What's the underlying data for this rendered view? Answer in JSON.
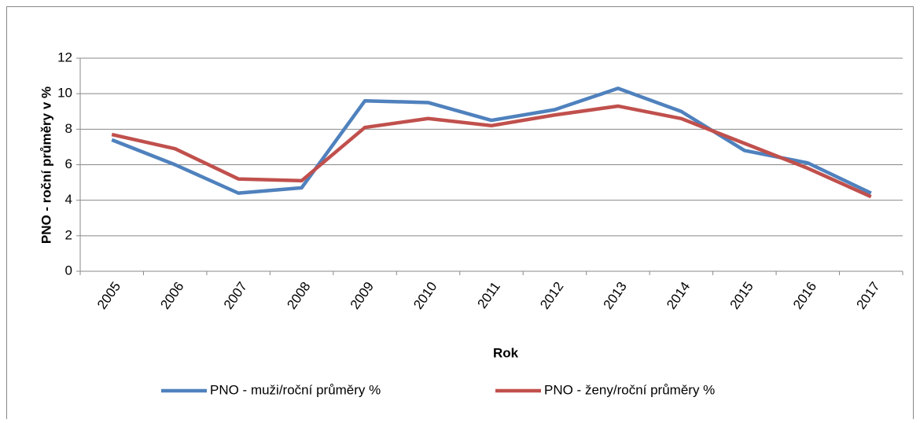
{
  "chart_data": {
    "type": "line",
    "x_label": "Rok",
    "y_label": "PNO  - roční průměry v %",
    "categories": [
      "2005",
      "2006",
      "2007",
      "2008",
      "2009",
      "2010",
      "2011",
      "2012",
      "2013",
      "2014",
      "2015",
      "2016",
      "2017"
    ],
    "series": [
      {
        "name": "PNO - muži/roční průměry %",
        "color": "#4f81bd",
        "values": [
          7.4,
          6.0,
          4.4,
          4.7,
          9.6,
          9.5,
          8.5,
          9.1,
          10.3,
          9.0,
          6.8,
          6.1,
          4.4
        ]
      },
      {
        "name": "PNO - ženy/roční průměry %",
        "color": "#c0504d",
        "values": [
          7.7,
          6.9,
          5.2,
          5.1,
          8.1,
          8.6,
          8.2,
          8.8,
          9.3,
          8.6,
          7.2,
          5.8,
          4.2
        ]
      }
    ],
    "ylim": [
      0,
      12
    ],
    "yticks": [
      0,
      2,
      4,
      6,
      8,
      10,
      12
    ],
    "grid": true,
    "legend": "bottom"
  }
}
